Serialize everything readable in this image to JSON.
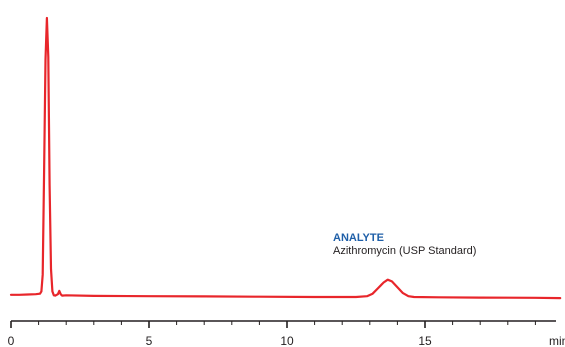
{
  "chart_data": {
    "type": "line",
    "title": "",
    "xlabel": "",
    "ylabel": "",
    "x_unit_label": "min",
    "xlim": [
      0,
      20
    ],
    "x_ticks": [
      0,
      5,
      10,
      15
    ],
    "x_tick_labels": [
      "0",
      "5",
      "10",
      "15"
    ],
    "ylim": [
      0,
      100
    ],
    "grid": false,
    "legend": "none",
    "series": [
      {
        "color": "#e8262b",
        "x": [
          0.0,
          0.3,
          0.6,
          0.9,
          1.05,
          1.1,
          1.15,
          1.2,
          1.25,
          1.3,
          1.35,
          1.4,
          1.45,
          1.5,
          1.55,
          1.6,
          1.7,
          1.75,
          1.8,
          1.85,
          2.0,
          3.0,
          5.0,
          7.0,
          9.0,
          11.0,
          12.5,
          12.9,
          13.1,
          13.3,
          13.5,
          13.65,
          13.8,
          14.0,
          14.2,
          14.4,
          14.6,
          15.5,
          17.0,
          19.0,
          19.9
        ],
        "y": [
          0.8,
          0.8,
          0.9,
          1.0,
          1.2,
          2.0,
          8.0,
          45.0,
          85.0,
          100.0,
          86.0,
          40.0,
          10.0,
          2.0,
          0.6,
          0.5,
          1.0,
          2.2,
          1.0,
          0.5,
          0.6,
          0.4,
          0.3,
          0.2,
          0.1,
          0.0,
          0.0,
          0.3,
          1.2,
          3.2,
          5.2,
          6.2,
          5.6,
          3.5,
          1.4,
          0.3,
          0.0,
          -0.1,
          -0.2,
          -0.3,
          -0.4
        ]
      }
    ],
    "annotations": [
      {
        "title": "ANALYTE",
        "text": "Azithromycin (USP Standard)",
        "title_color": "#1f5fa8"
      }
    ]
  }
}
